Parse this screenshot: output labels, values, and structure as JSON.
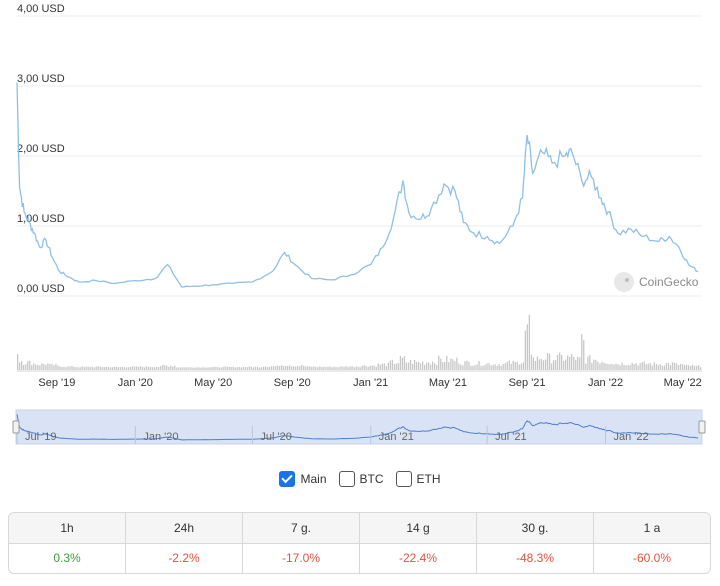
{
  "chart_data": {
    "type": "line",
    "title": "",
    "xlabel": "",
    "ylabel": "",
    "ylim": [
      0,
      4
    ],
    "y_ticks": [
      "0,00 USD",
      "1,00 USD",
      "2,00 USD",
      "3,00 USD",
      "4,00 USD"
    ],
    "x_ticks": [
      "Sep '19",
      "Jan '20",
      "May '20",
      "Sep '20",
      "Jan '21",
      "May '21",
      "Sep '21",
      "Jan '22",
      "May '22"
    ],
    "navigator_ticks": [
      "Jul '19",
      "Jan '20",
      "Jul '20",
      "Jan '21",
      "Jul '21",
      "Jan '22"
    ],
    "grid": true,
    "color": "#8fbfe8",
    "series": [
      {
        "values": [
          {
            "x": "2019-07-01",
            "y": 3.05
          },
          {
            "x": "2019-07-05",
            "y": 1.55
          },
          {
            "x": "2019-07-12",
            "y": 1.2
          },
          {
            "x": "2019-07-20",
            "y": 1.05
          },
          {
            "x": "2019-07-28",
            "y": 0.9
          },
          {
            "x": "2019-08-05",
            "y": 0.7
          },
          {
            "x": "2019-08-15",
            "y": 0.8
          },
          {
            "x": "2019-08-25",
            "y": 0.55
          },
          {
            "x": "2019-09-05",
            "y": 0.35
          },
          {
            "x": "2019-09-20",
            "y": 0.27
          },
          {
            "x": "2019-10-05",
            "y": 0.2
          },
          {
            "x": "2019-11-01",
            "y": 0.22
          },
          {
            "x": "2019-12-01",
            "y": 0.18
          },
          {
            "x": "2020-01-01",
            "y": 0.22
          },
          {
            "x": "2020-02-01",
            "y": 0.25
          },
          {
            "x": "2020-02-20",
            "y": 0.45
          },
          {
            "x": "2020-03-13",
            "y": 0.13
          },
          {
            "x": "2020-04-01",
            "y": 0.14
          },
          {
            "x": "2020-05-01",
            "y": 0.16
          },
          {
            "x": "2020-06-01",
            "y": 0.18
          },
          {
            "x": "2020-07-01",
            "y": 0.2
          },
          {
            "x": "2020-08-01",
            "y": 0.35
          },
          {
            "x": "2020-08-20",
            "y": 0.62
          },
          {
            "x": "2020-09-05",
            "y": 0.45
          },
          {
            "x": "2020-10-01",
            "y": 0.25
          },
          {
            "x": "2020-11-01",
            "y": 0.23
          },
          {
            "x": "2020-12-01",
            "y": 0.3
          },
          {
            "x": "2021-01-01",
            "y": 0.45
          },
          {
            "x": "2021-01-20",
            "y": 0.7
          },
          {
            "x": "2021-02-05",
            "y": 1.1
          },
          {
            "x": "2021-02-20",
            "y": 1.65
          },
          {
            "x": "2021-03-01",
            "y": 1.2
          },
          {
            "x": "2021-03-20",
            "y": 1.1
          },
          {
            "x": "2021-04-05",
            "y": 1.25
          },
          {
            "x": "2021-04-25",
            "y": 1.6
          },
          {
            "x": "2021-05-12",
            "y": 1.5
          },
          {
            "x": "2021-05-25",
            "y": 1.05
          },
          {
            "x": "2021-06-10",
            "y": 0.9
          },
          {
            "x": "2021-07-01",
            "y": 0.85
          },
          {
            "x": "2021-07-20",
            "y": 0.75
          },
          {
            "x": "2021-08-10",
            "y": 1.0
          },
          {
            "x": "2021-08-25",
            "y": 1.4
          },
          {
            "x": "2021-09-01",
            "y": 2.3
          },
          {
            "x": "2021-09-10",
            "y": 1.75
          },
          {
            "x": "2021-09-25",
            "y": 2.05
          },
          {
            "x": "2021-10-10",
            "y": 1.9
          },
          {
            "x": "2021-10-30",
            "y": 2.0
          },
          {
            "x": "2021-11-10",
            "y": 2.05
          },
          {
            "x": "2021-11-25",
            "y": 1.65
          },
          {
            "x": "2021-12-10",
            "y": 1.7
          },
          {
            "x": "2021-12-25",
            "y": 1.4
          },
          {
            "x": "2022-01-05",
            "y": 1.2
          },
          {
            "x": "2022-01-20",
            "y": 0.9
          },
          {
            "x": "2022-02-10",
            "y": 0.95
          },
          {
            "x": "2022-03-01",
            "y": 0.85
          },
          {
            "x": "2022-03-25",
            "y": 0.78
          },
          {
            "x": "2022-04-10",
            "y": 0.85
          },
          {
            "x": "2022-04-25",
            "y": 0.7
          },
          {
            "x": "2022-05-10",
            "y": 0.45
          },
          {
            "x": "2022-05-25",
            "y": 0.35
          }
        ]
      }
    ],
    "volume_color": "#c7c7c7"
  },
  "logo": {
    "text": "CoinGecko",
    "icon": "gecko-icon"
  },
  "toggles": [
    {
      "label": "Main",
      "checked": true
    },
    {
      "label": "BTC",
      "checked": false
    },
    {
      "label": "ETH",
      "checked": false
    }
  ],
  "performance": {
    "headers": [
      "1h",
      "24h",
      "7 g.",
      "14 g",
      "30 g.",
      "1 a"
    ],
    "values": [
      "0.3%",
      "-2.2%",
      "-17.0%",
      "-22.4%",
      "-48.3%",
      "-60.0%"
    ]
  }
}
